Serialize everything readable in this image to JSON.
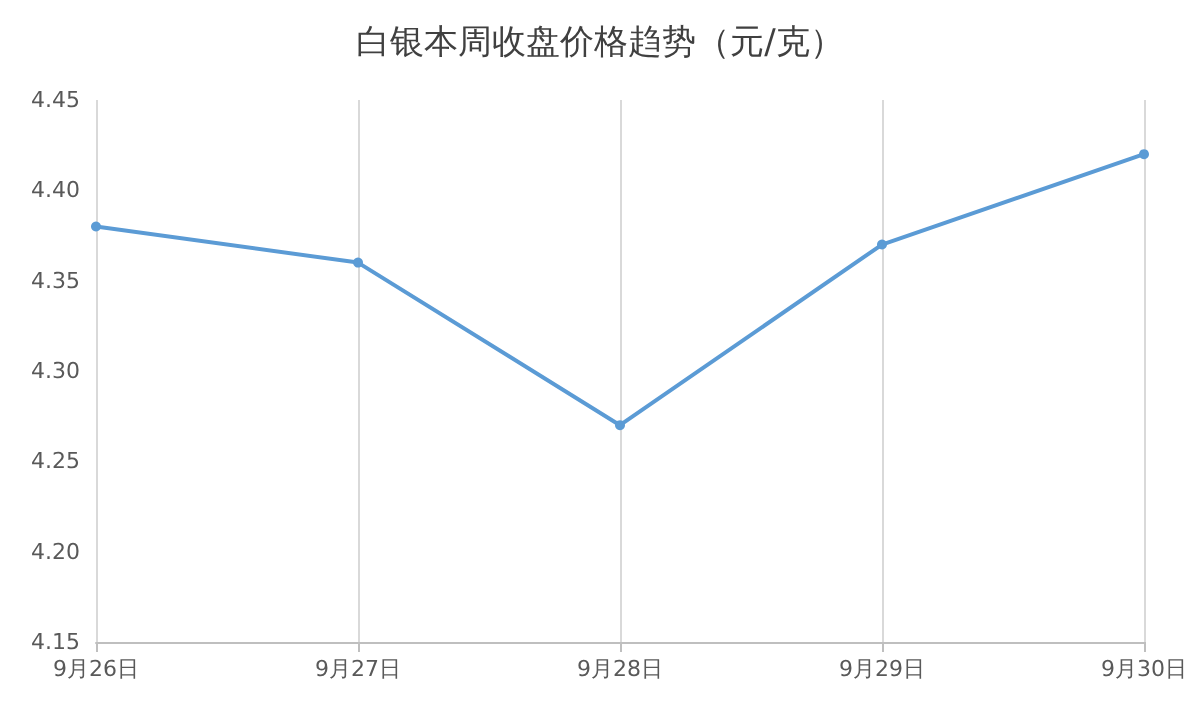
{
  "chart_data": {
    "type": "line",
    "title": "白银本周收盘价格趋势（元/克）",
    "categories": [
      "9月26日",
      "9月27日",
      "9月28日",
      "9月29日",
      "9月30日"
    ],
    "series": [
      {
        "color": "#5b9bd5",
        "values": [
          4.38,
          4.36,
          4.27,
          4.37,
          4.42
        ]
      }
    ],
    "ylim": [
      4.15,
      4.45
    ],
    "yticks": [
      {
        "value": 4.15,
        "label": "4.15"
      },
      {
        "value": 4.2,
        "label": "4.20"
      },
      {
        "value": 4.25,
        "label": "4.25"
      },
      {
        "value": 4.3,
        "label": "4.30"
      },
      {
        "value": 4.35,
        "label": "4.35"
      },
      {
        "value": 4.4,
        "label": "4.40"
      },
      {
        "value": 4.45,
        "label": "4.45"
      }
    ],
    "grid": "x",
    "marker": "circle",
    "line_style": "solid"
  }
}
